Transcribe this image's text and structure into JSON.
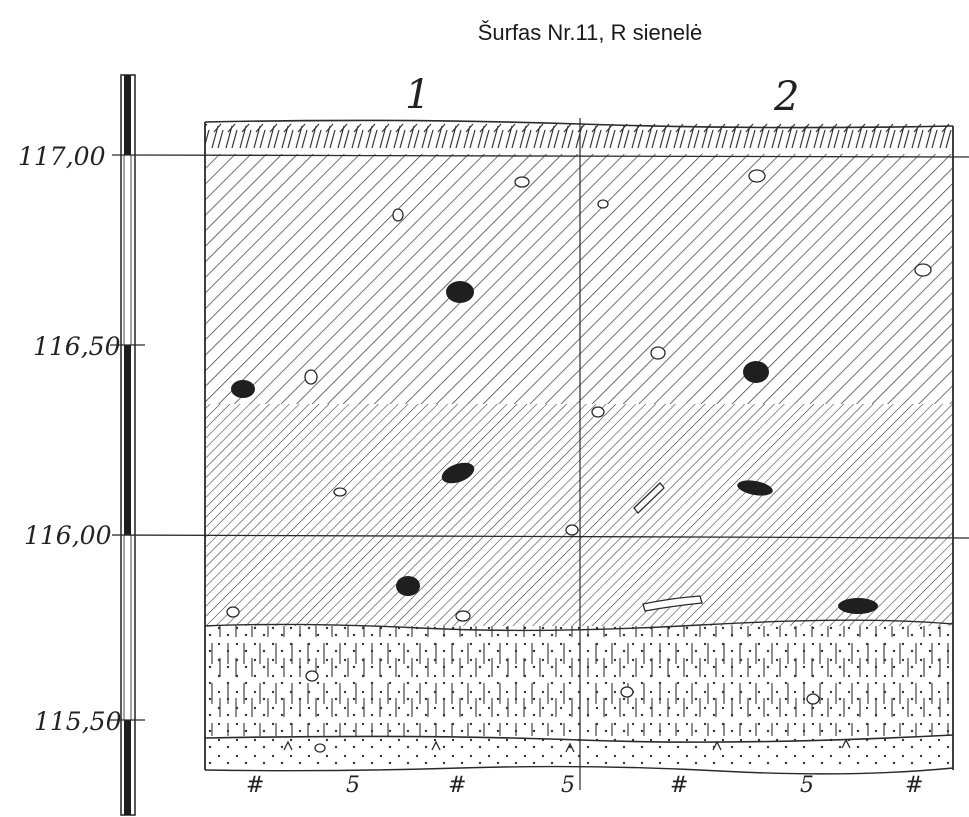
{
  "title": "Šurfas Nr.11, R sienelė",
  "elevations": [
    {
      "label": "117,00",
      "value": 117.0
    },
    {
      "label": "116,50",
      "value": 116.5
    },
    {
      "label": "116,00",
      "value": 116.0
    },
    {
      "label": "115,50",
      "value": 115.5
    }
  ],
  "columns": [
    {
      "label": "1"
    },
    {
      "label": "2"
    }
  ],
  "bottom_marks": [
    "#",
    "5",
    "#",
    "5",
    "#",
    "5",
    "#"
  ],
  "colors": {
    "ink": "#2a2a2a",
    "paper": "#ffffff"
  }
}
